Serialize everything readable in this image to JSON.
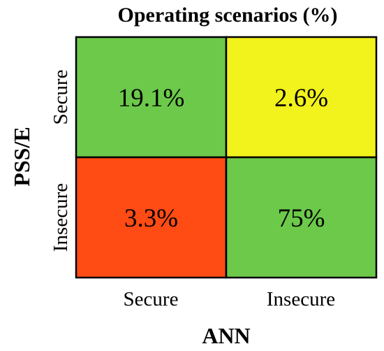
{
  "chart_data": {
    "type": "heatmap",
    "title": "Operating scenarios (%)",
    "xlabel": "ANN",
    "ylabel": "PSS/E",
    "x_categories": [
      "Secure",
      "Insecure"
    ],
    "y_categories": [
      "Secure",
      "Insecure"
    ],
    "values": [
      [
        19.1,
        2.6
      ],
      [
        3.3,
        75
      ]
    ],
    "cell_labels": [
      [
        "19.1%",
        "2.6%"
      ],
      [
        "3.3%",
        "75%"
      ]
    ],
    "cell_colors": [
      [
        "#6cc94a",
        "#f2f21c"
      ],
      [
        "#ff4b14",
        "#6cc94a"
      ]
    ],
    "grid_line_color": "#000000"
  }
}
